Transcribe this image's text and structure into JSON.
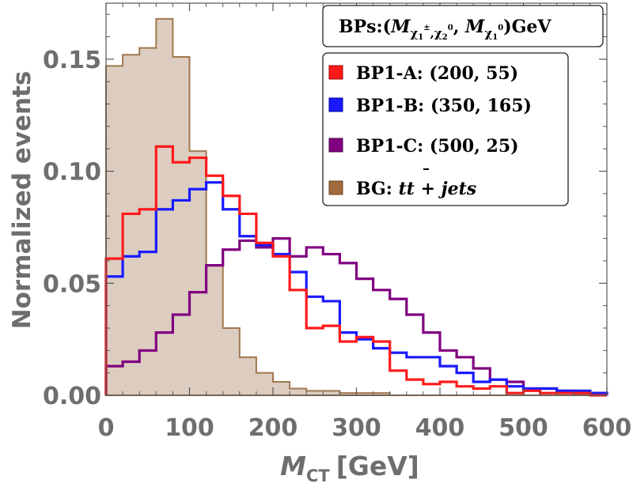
{
  "chart_data": {
    "type": "histogram-step",
    "xlabel_main": "M",
    "xlabel_sub": "CT",
    "xlabel_unit": "[GeV]",
    "ylabel": "Normalized events",
    "xlim": [
      0,
      600
    ],
    "ylim": [
      0,
      0.175
    ],
    "xticks": [
      0,
      100,
      200,
      300,
      400,
      500,
      600
    ],
    "xtick_labels": [
      "0",
      "100",
      "200",
      "300",
      "400",
      "500",
      "600"
    ],
    "yticks": [
      0,
      0.05,
      0.1,
      0.15
    ],
    "ytick_labels": [
      "0.00",
      "0.05",
      "0.10",
      "0.15"
    ],
    "bin_width": 20,
    "legend": {
      "header": {
        "prefix": "BPs:(",
        "m1": "M",
        "m1_sub": "χ",
        "m1_sub2": "1",
        "m1_sup": "±",
        "comma1": ",",
        "m1b_sub": "χ",
        "m1b_sub2": "2",
        "m1b_sup": "0",
        "comma2": ", ",
        "m2": "M",
        "m2_sub": "χ",
        "m2_sub2": "1",
        "m2_sup": "0",
        "suffix": ")GeV"
      },
      "bg_label_prefix": "BG: ",
      "bg_label_tt": "tt",
      "bg_label_suffix": " + jets",
      "placement": "top-right"
    },
    "series": [
      {
        "name": "BP1-A: (200, 55)",
        "color": "#ff1a1a",
        "values": [
          0.061,
          0.081,
          0.083,
          0.111,
          0.104,
          0.106,
          0.098,
          0.089,
          0.081,
          0.068,
          0.062,
          0.047,
          0.03,
          0.031,
          0.024,
          0.026,
          0.024,
          0.011,
          0.007,
          0.005,
          0.006,
          0.004,
          0.003,
          0.004,
          0.001,
          0.002,
          0.001,
          0.001,
          0.001,
          0.0
        ]
      },
      {
        "name": "BP1-B: (350, 165)",
        "color": "#1a1aff",
        "values": [
          0.053,
          0.062,
          0.064,
          0.083,
          0.087,
          0.092,
          0.095,
          0.083,
          0.071,
          0.067,
          0.063,
          0.055,
          0.044,
          0.042,
          0.028,
          0.025,
          0.021,
          0.019,
          0.017,
          0.017,
          0.013,
          0.01,
          0.006,
          0.007,
          0.004,
          0.003,
          0.003,
          0.002,
          0.002,
          0.001
        ]
      },
      {
        "name": "BP1-C: (500, 25)",
        "color": "#800080",
        "values": [
          0.013,
          0.015,
          0.02,
          0.028,
          0.036,
          0.046,
          0.058,
          0.065,
          0.069,
          0.066,
          0.07,
          0.062,
          0.066,
          0.063,
          0.059,
          0.052,
          0.047,
          0.043,
          0.036,
          0.028,
          0.02,
          0.017,
          0.012,
          0.007,
          0.006,
          0.003,
          0.003,
          0.002,
          0.001,
          0.001
        ]
      },
      {
        "name": "BG",
        "color": "#a07850",
        "fill": "#dccdc0",
        "values": [
          0.147,
          0.152,
          0.155,
          0.168,
          0.151,
          0.109,
          0.058,
          0.03,
          0.017,
          0.01,
          0.006,
          0.003,
          0.002,
          0.002,
          0.001,
          0.001,
          0.001,
          0.0,
          0.0,
          0.0,
          0.0,
          0.0,
          0.0,
          0.0,
          0.0,
          0.0,
          0.0,
          0.0,
          0.0,
          0.0
        ]
      }
    ]
  }
}
